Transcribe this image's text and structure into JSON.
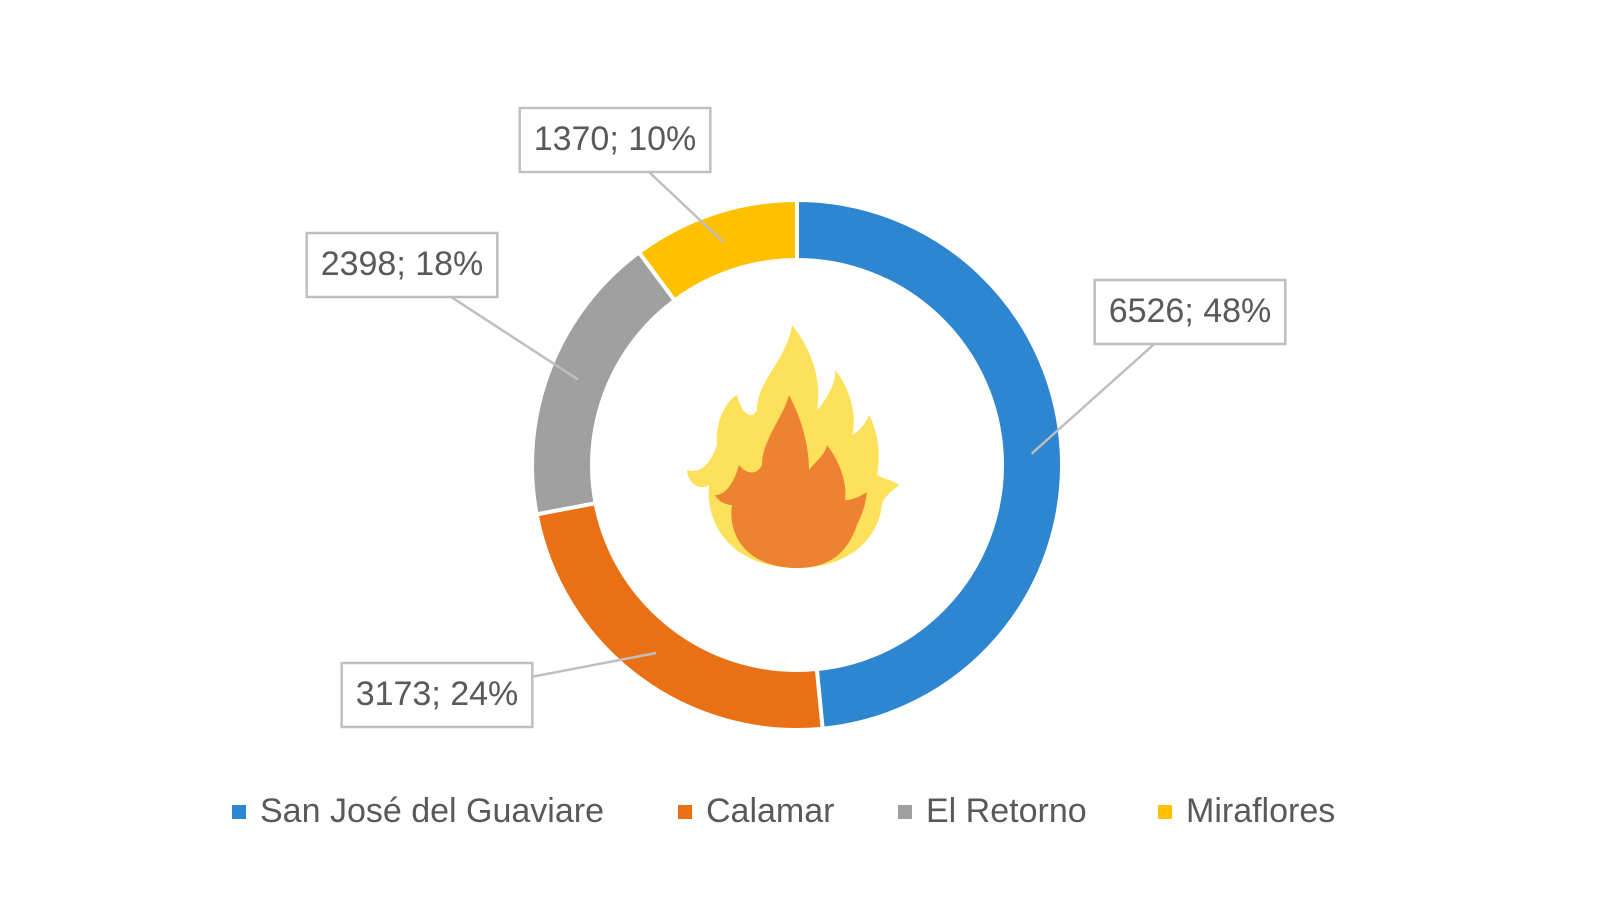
{
  "chart_data": {
    "type": "doughnut",
    "categories": [
      "San José del Guaviare",
      "Calamar",
      "El Retorno",
      "Miraflores"
    ],
    "values": [
      6526,
      3173,
      2398,
      1370
    ],
    "value_labels": [
      "6526; 48%",
      "3173; 24%",
      "2398; 18%",
      "1370; 10%"
    ],
    "colors": [
      "#2e86d0",
      "#ea7016",
      "#a0a0a0",
      "#ffc000"
    ],
    "legend": "bottom"
  }
}
